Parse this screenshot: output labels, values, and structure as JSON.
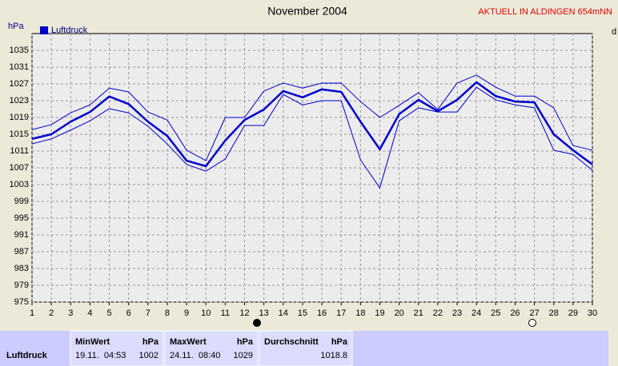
{
  "chart_data": {
    "type": "line",
    "title": "November 2004",
    "note": "AKTUELL IN ALDINGEN 654mNN",
    "y_label": "hPa",
    "right_label": "d",
    "x": [
      1,
      2,
      3,
      4,
      5,
      6,
      7,
      8,
      9,
      10,
      11,
      12,
      13,
      14,
      15,
      16,
      17,
      18,
      19,
      20,
      21,
      22,
      23,
      24,
      25,
      26,
      27,
      28,
      29,
      30
    ],
    "xlim": [
      1,
      30
    ],
    "xticks": [
      1,
      2,
      3,
      4,
      5,
      6,
      7,
      8,
      9,
      10,
      11,
      12,
      13,
      14,
      15,
      16,
      17,
      18,
      19,
      20,
      21,
      22,
      23,
      24,
      25,
      26,
      27,
      28,
      29,
      30
    ],
    "ylim": [
      975,
      1039
    ],
    "yticks": [
      975,
      979,
      983,
      987,
      991,
      995,
      999,
      1003,
      1007,
      1011,
      1015,
      1019,
      1023,
      1027,
      1031,
      1035
    ],
    "grid": true,
    "series": [
      {
        "name": "Luftdruck",
        "color": "#0000cc",
        "values": [
          1013.9,
          1015,
          1018,
          1020.3,
          1024,
          1022.2,
          1018,
          1014.6,
          1008.7,
          1007.4,
          1013.5,
          1018.4,
          1020.9,
          1025.3,
          1023.8,
          1025.7,
          1025.1,
          1018,
          1011.4,
          1019.8,
          1023.2,
          1020.5,
          1023.2,
          1027.4,
          1024.1,
          1022.8,
          1022.6,
          1015,
          1011.2,
          1007.8
        ]
      },
      {
        "color": "#0000cc",
        "values": [
          1016.1,
          1017.3,
          1020.1,
          1022,
          1026,
          1025.1,
          1020.3,
          1018.4,
          1011.2,
          1008.7,
          1019,
          1019,
          1025.3,
          1027.2,
          1026,
          1027.2,
          1027.2,
          1022.8,
          1019,
          1021.9,
          1024.9,
          1020.9,
          1027.2,
          1029.1,
          1026.2,
          1024.1,
          1024.1,
          1021.3,
          1012.3,
          1011.2
        ]
      },
      {
        "color": "#0000cc",
        "values": [
          1012.7,
          1013.9,
          1016,
          1018.2,
          1021.1,
          1020.1,
          1016.9,
          1012.7,
          1007.8,
          1006.2,
          1009.1,
          1017.1,
          1017.1,
          1024.5,
          1022,
          1023,
          1023,
          1008.9,
          1002.2,
          1018.2,
          1021.3,
          1020.3,
          1020.3,
          1026.2,
          1023.2,
          1022,
          1021.3,
          1011.2,
          1010.2,
          1006.4
        ]
      }
    ]
  },
  "stats": {
    "min_header": "MinWert",
    "min_unit": "hPa",
    "max_header": "MaxWert",
    "max_unit": "hPa",
    "avg_header": "Durchschnitt",
    "avg_unit": "hPa",
    "row": {
      "label": "Luftdruck",
      "min_time": "19.11.  04:53",
      "min": 1002,
      "max_time": "24.11.  08:40",
      "max": 1029,
      "avg": 1018.8
    }
  }
}
